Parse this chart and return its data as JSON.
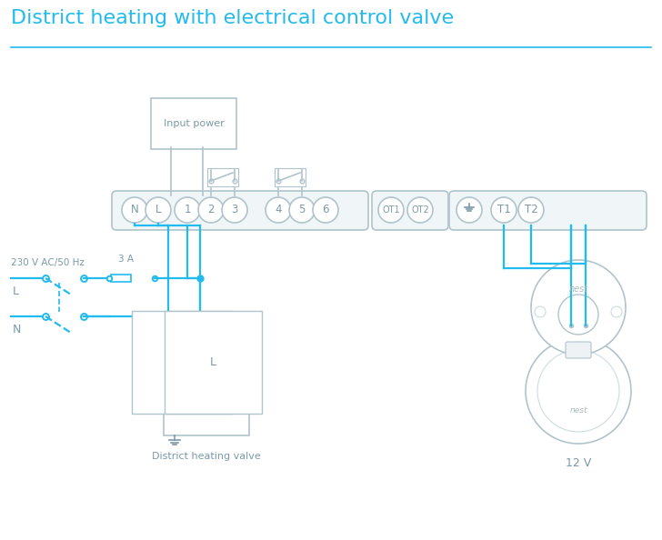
{
  "title": "District heating with electrical control valve",
  "title_color": "#22BBEE",
  "title_fontsize": 16,
  "bg_color": "#ffffff",
  "wire_color": "#22BBEE",
  "strip_color": "#aabbcc",
  "text_color": "#7a9aaa",
  "label_230v": "230 V AC/50 Hz",
  "label_L": "L",
  "label_N": "N",
  "label_3A": "3 A",
  "label_input_power": "Input power",
  "label_valve": "District heating valve",
  "label_12v": "12 V",
  "label_nest": "nest",
  "figw": 7.28,
  "figh": 5.94,
  "dpi": 100
}
